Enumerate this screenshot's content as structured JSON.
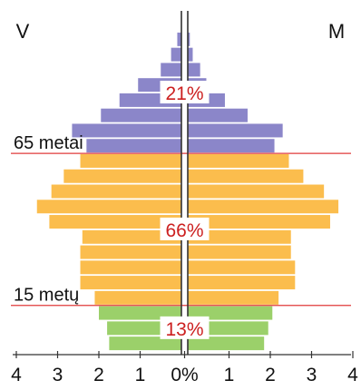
{
  "chart_data": {
    "type": "bar",
    "left_label": "V",
    "right_label": "M",
    "x_ticks": [
      "4",
      "3",
      "2",
      "1",
      "0%",
      "1",
      "2",
      "3",
      "4"
    ],
    "xlim": [
      0,
      4
    ],
    "age_marks": [
      {
        "label": "65 metai",
        "band_index": 13
      },
      {
        "label": "15 metų",
        "band_index": 3
      }
    ],
    "groups": [
      {
        "name": "0-14",
        "pct_label": "13%",
        "color": "#9bd06a"
      },
      {
        "name": "15-64",
        "pct_label": "66%",
        "color": "#fbbd4d"
      },
      {
        "name": "65+",
        "pct_label": "21%",
        "color": "#8b86c9"
      }
    ],
    "bands_bottom_to_top": [
      {
        "group": "0-14",
        "male": 1.75,
        "female": 1.85
      },
      {
        "group": "0-14",
        "male": 1.8,
        "female": 1.95
      },
      {
        "group": "0-14",
        "male": 2.0,
        "female": 2.05
      },
      {
        "group": "15-64",
        "male": 2.1,
        "female": 2.2
      },
      {
        "group": "15-64",
        "male": 2.45,
        "female": 2.6
      },
      {
        "group": "15-64",
        "male": 2.45,
        "female": 2.6
      },
      {
        "group": "15-64",
        "male": 2.45,
        "female": 2.5
      },
      {
        "group": "15-64",
        "male": 2.4,
        "female": 2.5
      },
      {
        "group": "15-64",
        "male": 3.2,
        "female": 3.45
      },
      {
        "group": "15-64",
        "male": 3.5,
        "female": 3.65
      },
      {
        "group": "15-64",
        "male": 3.15,
        "female": 3.3
      },
      {
        "group": "15-64",
        "male": 2.85,
        "female": 2.8
      },
      {
        "group": "15-64",
        "male": 2.45,
        "female": 2.45
      },
      {
        "group": "65+",
        "male": 2.3,
        "female": 2.1
      },
      {
        "group": "65+",
        "male": 2.65,
        "female": 2.3
      },
      {
        "group": "65+",
        "male": 1.95,
        "female": 1.45
      },
      {
        "group": "65+",
        "male": 1.5,
        "female": 0.9
      },
      {
        "group": "65+",
        "male": 1.05,
        "female": 0.45
      },
      {
        "group": "65+",
        "male": 0.5,
        "female": 0.3
      },
      {
        "group": "65+",
        "male": 0.25,
        "female": 0.12
      },
      {
        "group": "65+",
        "male": 0.1,
        "female": 0.05
      }
    ],
    "guide_line_color": "#e03a3a",
    "axis_color": "#333333",
    "grid": false
  }
}
